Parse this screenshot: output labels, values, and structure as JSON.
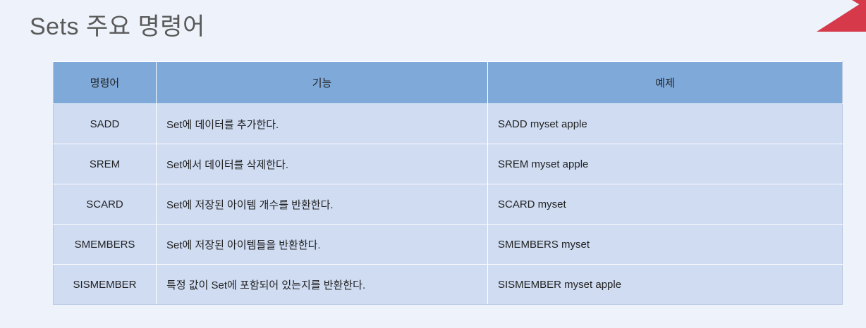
{
  "title": "Sets 주요 명령어",
  "accent_color": "#d63a4a",
  "table": {
    "headers": [
      "명령어",
      "기능",
      "예제"
    ],
    "rows": [
      {
        "command": "SADD",
        "description": "Set에 데이터를 추가한다.",
        "example": "SADD myset apple"
      },
      {
        "command": "SREM",
        "description": "Set에서 데이터를 삭제한다.",
        "example": "SREM myset apple"
      },
      {
        "command": "SCARD",
        "description": "Set에 저장된 아이템 개수를 반환한다.",
        "example": "SCARD myset"
      },
      {
        "command": "SMEMBERS",
        "description": "Set에 저장된 아이템들을 반환한다.",
        "example": "SMEMBERS myset"
      },
      {
        "command": "SISMEMBER",
        "description": "특정 값이 Set에 포함되어 있는지를 반환한다.",
        "example": "SISMEMBER myset apple"
      }
    ]
  }
}
